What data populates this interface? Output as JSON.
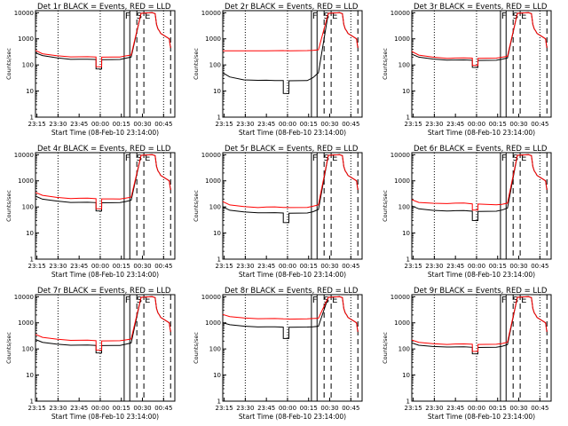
{
  "colors": {
    "events": "#000000",
    "lld": "#ff0000",
    "background": "#ffffff"
  },
  "figure": {
    "x_tick_labels": [
      "23:15",
      "23:30",
      "23:45",
      "00:00",
      "00:15",
      "00:30",
      "00:45"
    ],
    "y_tick_labels": [
      "1",
      "10",
      "100",
      "1000",
      "10000"
    ],
    "xlabel": "Start Time (08-Feb-10 23:14:00)",
    "ylabel": "Counts/sec",
    "marker_labels": [
      "F",
      "S",
      "E"
    ]
  },
  "chart_data": [
    {
      "type": "line",
      "title": "Det 1r BLACK = Events, RED = LLD",
      "yscale": "log",
      "ylim": [
        1,
        12000
      ],
      "x_unit": "minutes after 23:14",
      "xlim": [
        0,
        99
      ],
      "series": [
        {
          "name": "Events",
          "x": [
            0,
            5,
            15,
            25,
            31,
            37,
            43,
            60,
            64,
            68,
            75,
            83,
            85,
            86,
            87,
            88,
            89,
            95,
            96
          ],
          "y": [
            290,
            230,
            190,
            165,
            165,
            165,
            160,
            160,
            180,
            200,
            9500,
            10000,
            9200,
            3500,
            2400,
            2000,
            1600,
            1000,
            450
          ]
        },
        {
          "name": "LLD",
          "x": [
            0,
            5,
            15,
            25,
            31,
            37,
            43,
            60,
            64,
            68,
            75,
            83,
            85,
            86,
            87,
            88,
            89,
            95,
            96
          ],
          "y": [
            360,
            270,
            230,
            205,
            205,
            205,
            200,
            200,
            220,
            240,
            9500,
            10000,
            9200,
            3500,
            2400,
            2000,
            1600,
            1000,
            450
          ]
        }
      ],
      "dip": {
        "x0": 43,
        "x1": 47,
        "events": 70,
        "lld": 85
      }
    },
    {
      "type": "line",
      "title": "Det 2r BLACK = Events, RED = LLD",
      "yscale": "log",
      "ylim": [
        1,
        12000
      ],
      "x_unit": "minutes after 23:14",
      "xlim": [
        0,
        99
      ],
      "series": [
        {
          "name": "Events",
          "x": [
            0,
            5,
            15,
            25,
            31,
            37,
            43,
            60,
            64,
            68,
            75,
            83,
            85,
            86,
            87,
            88,
            89,
            95,
            96
          ],
          "y": [
            50,
            35,
            27,
            26,
            26,
            25,
            25,
            25,
            32,
            50,
            9500,
            10000,
            9200,
            3500,
            2400,
            2000,
            1600,
            1000,
            450
          ]
        },
        {
          "name": "LLD",
          "x": [
            0,
            5,
            15,
            25,
            31,
            37,
            43,
            60,
            64,
            68,
            75,
            83,
            85,
            86,
            87,
            88,
            89,
            95,
            96
          ],
          "y": [
            350,
            350,
            350,
            350,
            350,
            350,
            350,
            350,
            360,
            380,
            9500,
            10000,
            9200,
            3500,
            2400,
            2000,
            1600,
            1000,
            450
          ]
        }
      ],
      "dip": {
        "x0": 43,
        "x1": 47,
        "events": 8,
        "lld": 350
      }
    },
    {
      "type": "line",
      "title": "Det 3r BLACK = Events, RED = LLD",
      "yscale": "log",
      "ylim": [
        1,
        12000
      ],
      "x_unit": "minutes after 23:14",
      "xlim": [
        0,
        99
      ],
      "series": [
        {
          "name": "Events",
          "x": [
            0,
            5,
            15,
            25,
            31,
            37,
            43,
            60,
            64,
            68,
            75,
            83,
            85,
            86,
            87,
            88,
            89,
            95,
            96
          ],
          "y": [
            260,
            200,
            170,
            155,
            155,
            155,
            150,
            150,
            165,
            185,
            9500,
            10000,
            9200,
            3500,
            2400,
            2000,
            1600,
            1000,
            450
          ]
        },
        {
          "name": "LLD",
          "x": [
            0,
            5,
            15,
            25,
            31,
            37,
            43,
            60,
            64,
            68,
            75,
            83,
            85,
            86,
            87,
            88,
            89,
            95,
            96
          ],
          "y": [
            330,
            240,
            200,
            180,
            185,
            185,
            180,
            180,
            195,
            215,
            9500,
            10000,
            9200,
            3500,
            2400,
            2000,
            1600,
            1000,
            450
          ]
        }
      ],
      "dip": {
        "x0": 43,
        "x1": 47,
        "events": 80,
        "lld": 95
      }
    },
    {
      "type": "line",
      "title": "Det 4r BLACK = Events, RED = LLD",
      "yscale": "log",
      "ylim": [
        1,
        12000
      ],
      "x_unit": "minutes after 23:14",
      "xlim": [
        0,
        99
      ],
      "series": [
        {
          "name": "Events",
          "x": [
            0,
            5,
            15,
            25,
            31,
            37,
            43,
            60,
            64,
            68,
            75,
            83,
            85,
            86,
            87,
            88,
            89,
            95,
            96
          ],
          "y": [
            260,
            200,
            170,
            150,
            150,
            150,
            145,
            145,
            160,
            180,
            9500,
            10000,
            9200,
            3500,
            2400,
            2000,
            1600,
            1000,
            450
          ]
        },
        {
          "name": "LLD",
          "x": [
            0,
            5,
            15,
            25,
            31,
            37,
            43,
            60,
            64,
            68,
            75,
            83,
            85,
            86,
            87,
            88,
            89,
            95,
            96
          ],
          "y": [
            360,
            280,
            235,
            210,
            215,
            215,
            205,
            200,
            215,
            235,
            9500,
            10000,
            9200,
            3500,
            2400,
            2000,
            1600,
            1000,
            450
          ]
        }
      ],
      "dip": {
        "x0": 43,
        "x1": 47,
        "events": 70,
        "lld": 85
      }
    },
    {
      "type": "line",
      "title": "Det 5r BLACK = Events, RED = LLD",
      "yscale": "log",
      "ylim": [
        1,
        12000
      ],
      "x_unit": "minutes after 23:14",
      "xlim": [
        0,
        99
      ],
      "series": [
        {
          "name": "Events",
          "x": [
            0,
            5,
            15,
            25,
            31,
            37,
            43,
            60,
            64,
            68,
            75,
            83,
            85,
            86,
            87,
            88,
            89,
            95,
            96
          ],
          "y": [
            100,
            75,
            65,
            60,
            60,
            60,
            58,
            58,
            65,
            80,
            9500,
            10000,
            9200,
            3500,
            2400,
            2000,
            1600,
            1000,
            450
          ]
        },
        {
          "name": "LLD",
          "x": [
            0,
            5,
            15,
            25,
            31,
            37,
            43,
            60,
            64,
            68,
            75,
            83,
            85,
            86,
            87,
            88,
            89,
            95,
            96
          ],
          "y": [
            160,
            120,
            105,
            95,
            100,
            100,
            95,
            95,
            105,
            120,
            9500,
            10000,
            9200,
            3500,
            2400,
            2000,
            1600,
            1000,
            450
          ]
        }
      ],
      "dip": {
        "x0": 43,
        "x1": 47,
        "events": 25,
        "lld": 95
      }
    },
    {
      "type": "line",
      "title": "Det 6r BLACK = Events, RED = LLD",
      "yscale": "log",
      "ylim": [
        1,
        12000
      ],
      "x_unit": "minutes after 23:14",
      "xlim": [
        0,
        99
      ],
      "series": [
        {
          "name": "Events",
          "x": [
            0,
            5,
            15,
            25,
            31,
            37,
            43,
            60,
            64,
            68,
            75,
            83,
            85,
            86,
            87,
            88,
            89,
            95,
            96
          ],
          "y": [
            110,
            85,
            75,
            70,
            72,
            72,
            68,
            68,
            75,
            90,
            9500,
            10000,
            9200,
            3500,
            2400,
            2000,
            1600,
            1000,
            450
          ]
        },
        {
          "name": "LLD",
          "x": [
            0,
            5,
            15,
            25,
            31,
            37,
            43,
            60,
            64,
            68,
            75,
            83,
            85,
            86,
            87,
            88,
            89,
            95,
            96
          ],
          "y": [
            190,
            150,
            140,
            135,
            140,
            140,
            130,
            120,
            125,
            140,
            9500,
            10000,
            9200,
            3500,
            2400,
            2000,
            1600,
            1000,
            450
          ]
        }
      ],
      "dip": {
        "x0": 43,
        "x1": 47,
        "events": 30,
        "lld": 75
      }
    },
    {
      "type": "line",
      "title": "Det 7r BLACK = Events, RED = LLD",
      "yscale": "log",
      "ylim": [
        1,
        12000
      ],
      "x_unit": "minutes after 23:14",
      "xlim": [
        0,
        99
      ],
      "series": [
        {
          "name": "Events",
          "x": [
            0,
            5,
            15,
            25,
            31,
            37,
            43,
            60,
            64,
            68,
            75,
            83,
            85,
            86,
            87,
            88,
            89,
            95,
            96
          ],
          "y": [
            230,
            180,
            155,
            140,
            140,
            140,
            135,
            135,
            150,
            170,
            9500,
            10000,
            9200,
            3500,
            2400,
            2000,
            1600,
            1000,
            450
          ]
        },
        {
          "name": "LLD",
          "x": [
            0,
            5,
            15,
            25,
            31,
            37,
            43,
            60,
            64,
            68,
            75,
            83,
            85,
            86,
            87,
            88,
            89,
            95,
            96
          ],
          "y": [
            360,
            280,
            240,
            215,
            215,
            215,
            205,
            205,
            220,
            240,
            9500,
            10000,
            9200,
            3500,
            2400,
            2000,
            1600,
            1000,
            450
          ]
        }
      ],
      "dip": {
        "x0": 43,
        "x1": 47,
        "events": 70,
        "lld": 90
      }
    },
    {
      "type": "line",
      "title": "Det 8r BLACK = Events, RED = LLD",
      "yscale": "log",
      "ylim": [
        1,
        12000
      ],
      "x_unit": "minutes after 23:14",
      "xlim": [
        0,
        99
      ],
      "series": [
        {
          "name": "Events",
          "x": [
            0,
            5,
            15,
            25,
            31,
            37,
            43,
            60,
            64,
            68,
            75,
            83,
            85,
            86,
            87,
            88,
            89,
            95,
            96
          ],
          "y": [
            1000,
            850,
            750,
            700,
            700,
            700,
            680,
            680,
            700,
            740,
            9500,
            10000,
            9200,
            3500,
            2400,
            2000,
            1600,
            1000,
            450
          ]
        },
        {
          "name": "LLD",
          "x": [
            0,
            5,
            15,
            25,
            31,
            37,
            43,
            60,
            64,
            68,
            75,
            83,
            85,
            86,
            87,
            88,
            89,
            95,
            96
          ],
          "y": [
            2100,
            1750,
            1550,
            1450,
            1450,
            1450,
            1400,
            1400,
            1450,
            1500,
            9500,
            10000,
            9200,
            3500,
            2400,
            2000,
            1600,
            1000,
            450
          ]
        }
      ],
      "dip": {
        "x0": 43,
        "x1": 47,
        "events": 250,
        "lld": 1400
      }
    },
    {
      "type": "line",
      "title": "Det 9r BLACK = Events, RED = LLD",
      "yscale": "log",
      "ylim": [
        1,
        12000
      ],
      "x_unit": "minutes after 23:14",
      "xlim": [
        0,
        99
      ],
      "series": [
        {
          "name": "Events",
          "x": [
            0,
            5,
            15,
            25,
            31,
            37,
            43,
            60,
            64,
            68,
            75,
            83,
            85,
            86,
            87,
            88,
            89,
            95,
            96
          ],
          "y": [
            170,
            140,
            125,
            120,
            120,
            120,
            115,
            115,
            125,
            145,
            9500,
            10000,
            9200,
            3500,
            2400,
            2000,
            1600,
            1000,
            450
          ]
        },
        {
          "name": "LLD",
          "x": [
            0,
            5,
            15,
            25,
            31,
            37,
            43,
            60,
            64,
            68,
            75,
            83,
            85,
            86,
            87,
            88,
            89,
            95,
            96
          ],
          "y": [
            220,
            180,
            160,
            150,
            155,
            155,
            150,
            150,
            160,
            180,
            9500,
            10000,
            9200,
            3500,
            2400,
            2000,
            1600,
            1000,
            450
          ]
        }
      ],
      "dip": {
        "x0": 43,
        "x1": 47,
        "events": 65,
        "lld": 80
      }
    }
  ]
}
